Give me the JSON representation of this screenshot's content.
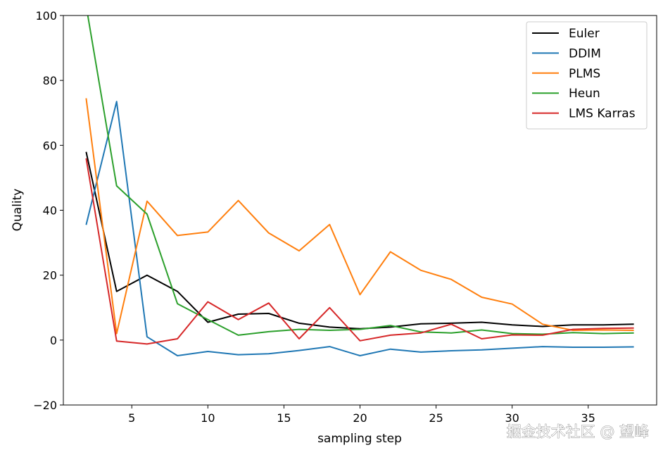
{
  "chart_data": {
    "type": "line",
    "xlabel": "sampling step",
    "ylabel": "Quality",
    "xlim": [
      0.5,
      39.5
    ],
    "ylim": [
      -20,
      100
    ],
    "xticks": [
      5,
      10,
      15,
      20,
      25,
      30,
      35
    ],
    "yticks": [
      -20,
      0,
      20,
      40,
      60,
      80,
      100
    ],
    "grid": false,
    "legend_position": "top-right",
    "x": [
      2,
      4,
      6,
      8,
      10,
      12,
      14,
      16,
      18,
      20,
      22,
      24,
      26,
      28,
      30,
      32,
      34,
      36,
      38
    ],
    "series": [
      {
        "name": "Euler",
        "color": "#000000",
        "values": [
          58,
          15,
          20,
          15,
          5.5,
          8,
          8.2,
          5.2,
          4,
          3.5,
          4,
          5,
          5.2,
          5.5,
          4.7,
          4.2,
          4.7,
          4.7,
          4.9
        ]
      },
      {
        "name": "DDIM",
        "color": "#1f77b4",
        "values": [
          35.5,
          73.5,
          1,
          -4.8,
          -3.5,
          -4.5,
          -4.2,
          -3.2,
          -2,
          -4.8,
          -2.8,
          -3.7,
          -3.3,
          -3,
          -2.5,
          -2,
          -2.2,
          -2.2,
          -2.1
        ]
      },
      {
        "name": "PLMS",
        "color": "#ff7f0e",
        "values": [
          74.5,
          2,
          42.8,
          32.2,
          33.3,
          43,
          33,
          27.5,
          35.6,
          14,
          27.2,
          21.5,
          18.7,
          13.2,
          11.1,
          4.9,
          3,
          3.1,
          3
        ]
      },
      {
        "name": "Heun",
        "color": "#2ca02c",
        "values": [
          103,
          47.5,
          38.8,
          11.2,
          6.3,
          1.5,
          2.6,
          3.3,
          3,
          3.3,
          4.5,
          2.5,
          2.2,
          3.1,
          2,
          1.8,
          2.3,
          2,
          2.2
        ]
      },
      {
        "name": "LMS Karras",
        "color": "#d62728",
        "values": [
          56,
          -0.3,
          -1.2,
          0.4,
          11.8,
          6.3,
          11.4,
          0.4,
          10,
          -0.2,
          1.5,
          2.2,
          4.9,
          0.4,
          1.6,
          1.5,
          3.3,
          3.6,
          3.7
        ]
      }
    ]
  },
  "watermark": "掘金技术社区 @ 望峰"
}
